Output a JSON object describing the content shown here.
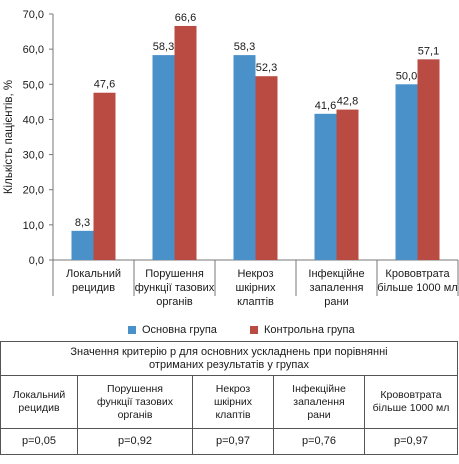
{
  "chart_data": {
    "type": "bar",
    "ylabel": "Кількість пацієнтів, %",
    "ylim": [
      0,
      70
    ],
    "yticks": [
      "0,0",
      "10,0",
      "20,0",
      "30,0",
      "40,0",
      "50,0",
      "60,0",
      "70,0"
    ],
    "categories": [
      [
        "Локальний",
        "рецидив"
      ],
      [
        "Порушення",
        "функції тазових",
        "органів"
      ],
      [
        "Некроз",
        "шкірних",
        "клаптів"
      ],
      [
        "Інфекційне",
        "запалення",
        "рани"
      ],
      [
        "Крововтрата",
        "більше 1000 мл"
      ]
    ],
    "series": [
      {
        "name": "Основна група",
        "color": "#4a90c9",
        "values": [
          8.3,
          58.3,
          58.3,
          41.6,
          50.0
        ],
        "labels": [
          "8,3",
          "58,3",
          "58,3",
          "41,6",
          "50,0"
        ]
      },
      {
        "name": "Контрольна група",
        "color": "#b94b42",
        "values": [
          47.6,
          66.6,
          52.3,
          42.8,
          57.1
        ],
        "labels": [
          "47,6",
          "66,6",
          "52,3",
          "42,8",
          "57,1"
        ]
      }
    ],
    "grid": false,
    "legend": "bottom"
  },
  "table": {
    "title_line1": "Значення критерію р для основних ускладнень при порівнянні",
    "title_line2": "отриманих результатів у групах",
    "headers": [
      [
        "Локальний",
        "рецидив"
      ],
      [
        "Порушення",
        "функції тазових",
        "органів"
      ],
      [
        "Некроз",
        "шкірних",
        "клаптів"
      ],
      [
        "Інфекційне",
        "запалення",
        "рани"
      ],
      [
        "Крововтрата",
        "більше 1000 мл"
      ]
    ],
    "values": [
      "р=0,05",
      "р=0,92",
      "р=0,97",
      "р=0,76",
      "р=0,97"
    ]
  }
}
